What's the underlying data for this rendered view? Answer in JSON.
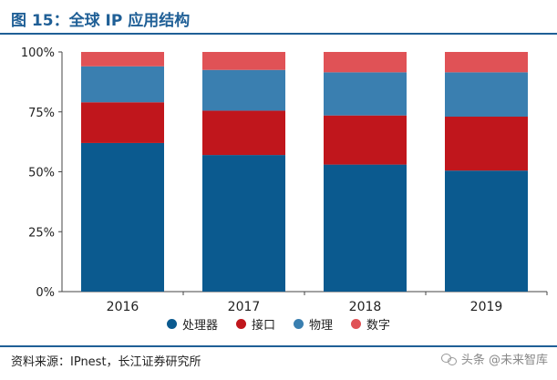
{
  "title": "图 15：全球 IP 应用结构",
  "source": "资料来源：IPnest，长江证券研究所",
  "watermark": "头条 @未来智库",
  "colors": {
    "processor": "#0b5a8f",
    "interface": "#c0161c",
    "physical": "#3a7fb0",
    "digital": "#e05256"
  },
  "chart_data": {
    "type": "bar",
    "stacked": true,
    "categories": [
      "2016",
      "2017",
      "2018",
      "2019"
    ],
    "ylim": [
      0,
      100
    ],
    "yticks": [
      "0%",
      "25%",
      "50%",
      "75%",
      "100%"
    ],
    "grid": false,
    "legend_position": "bottom",
    "series": [
      {
        "name": "处理器",
        "color": "#0b5a8f",
        "values": [
          62,
          57,
          53,
          50.5
        ]
      },
      {
        "name": "接口",
        "color": "#c0161c",
        "values": [
          17,
          18.5,
          20.5,
          22.5
        ]
      },
      {
        "name": "物理",
        "color": "#3a7fb0",
        "values": [
          15,
          17,
          18,
          18.5
        ]
      },
      {
        "name": "数字",
        "color": "#e05256",
        "values": [
          6,
          7.5,
          8.5,
          8.5
        ]
      }
    ]
  }
}
